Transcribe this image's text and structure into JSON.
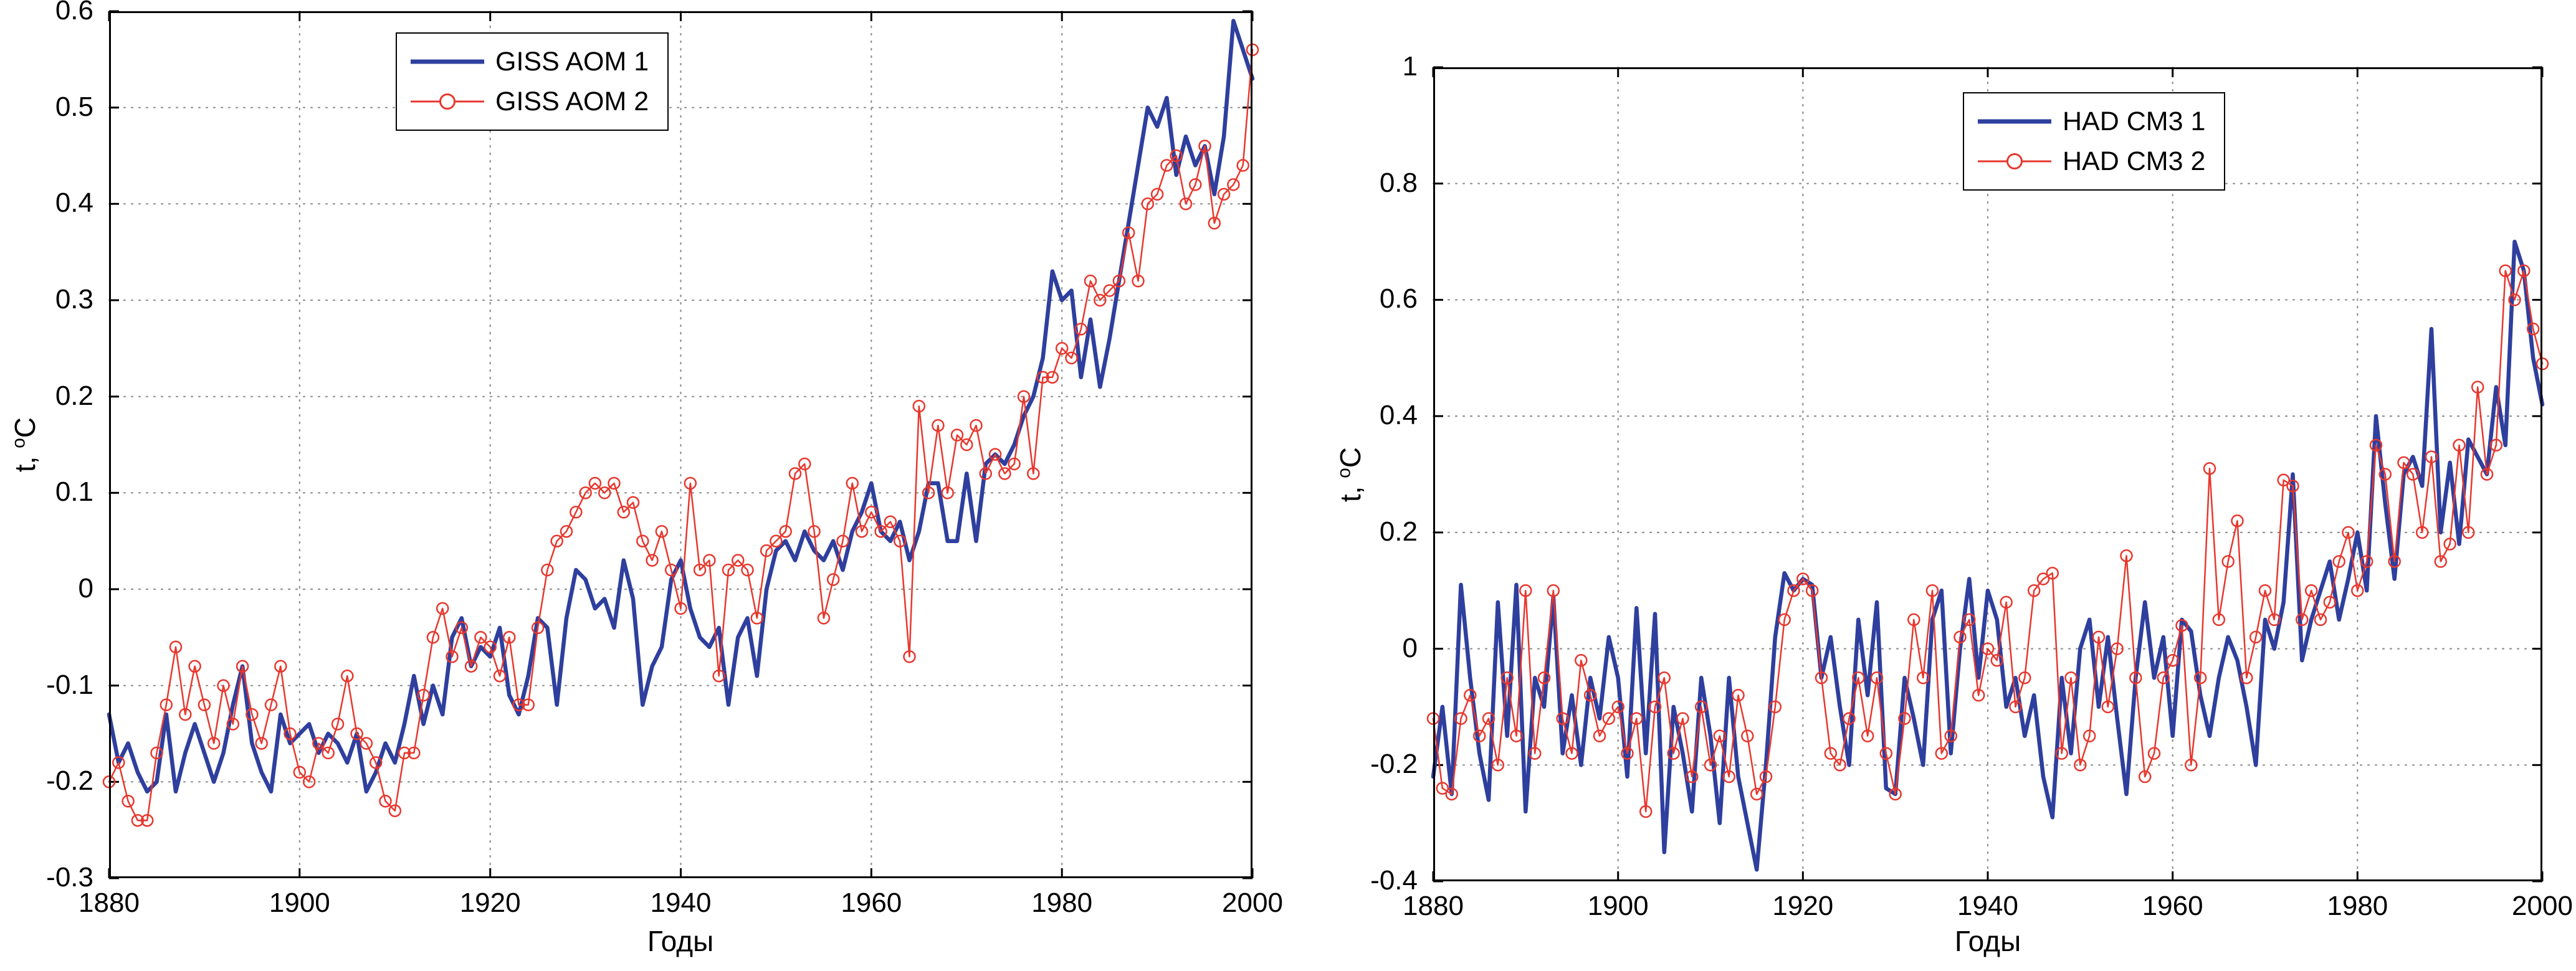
{
  "page": {
    "background": "#ffffff"
  },
  "colors": {
    "series1": "#2e3f9e",
    "series2": "#e8372d",
    "grid": "#8f8f8f",
    "axis": "#000000"
  },
  "chart_data": [
    {
      "type": "line",
      "title": "",
      "xlabel": "Годы",
      "ylabel": {
        "prefix": "t, ",
        "sup": "o",
        "base": "C"
      },
      "xlim": [
        1880,
        2000
      ],
      "ylim": [
        -0.3,
        0.6
      ],
      "xticks": [
        1880,
        1900,
        1920,
        1940,
        1960,
        1980,
        2000
      ],
      "yticks": [
        -0.3,
        -0.2,
        -0.1,
        0,
        0.1,
        0.2,
        0.3,
        0.4,
        0.5,
        0.6
      ],
      "yticklabels": [
        "-0.3",
        "-0.2",
        "-0.1",
        "0",
        "0.1",
        "0.2",
        "0.3",
        "0.4",
        "0.5",
        "0.6"
      ],
      "grid": "dotted",
      "legend": {
        "position": "upper-center-left-inside"
      },
      "x_start": 1880,
      "x_step": 1,
      "series": [
        {
          "name": "GISS AOM 1",
          "color": "#2e3f9e",
          "line_width": 6.5,
          "marker": "none",
          "values": [
            -0.13,
            -0.18,
            -0.16,
            -0.19,
            -0.21,
            -0.2,
            -0.13,
            -0.21,
            -0.17,
            -0.14,
            -0.17,
            -0.2,
            -0.17,
            -0.12,
            -0.08,
            -0.16,
            -0.19,
            -0.21,
            -0.13,
            -0.16,
            -0.15,
            -0.14,
            -0.17,
            -0.15,
            -0.16,
            -0.18,
            -0.15,
            -0.21,
            -0.19,
            -0.16,
            -0.18,
            -0.14,
            -0.09,
            -0.14,
            -0.1,
            -0.13,
            -0.05,
            -0.03,
            -0.08,
            -0.06,
            -0.07,
            -0.04,
            -0.11,
            -0.13,
            -0.09,
            -0.03,
            -0.04,
            -0.12,
            -0.03,
            0.02,
            0.01,
            -0.02,
            -0.01,
            -0.04,
            0.03,
            -0.01,
            -0.12,
            -0.08,
            -0.06,
            0.01,
            0.03,
            -0.02,
            -0.05,
            -0.06,
            -0.04,
            -0.12,
            -0.05,
            -0.03,
            -0.09,
            0.0,
            0.04,
            0.05,
            0.03,
            0.06,
            0.04,
            0.03,
            0.05,
            0.02,
            0.06,
            0.08,
            0.11,
            0.06,
            0.05,
            0.07,
            0.03,
            0.06,
            0.11,
            0.11,
            0.05,
            0.05,
            0.12,
            0.05,
            0.13,
            0.14,
            0.13,
            0.15,
            0.18,
            0.2,
            0.24,
            0.33,
            0.3,
            0.31,
            0.22,
            0.28,
            0.21,
            0.26,
            0.32,
            0.38,
            0.44,
            0.5,
            0.48,
            0.51,
            0.43,
            0.47,
            0.44,
            0.46,
            0.41,
            0.47,
            0.59,
            0.56,
            0.53
          ]
        },
        {
          "name": "GISS AOM 2",
          "color": "#e8372d",
          "line_width": 2.5,
          "marker": "circle",
          "values": [
            -0.2,
            -0.18,
            -0.22,
            -0.24,
            -0.24,
            -0.17,
            -0.12,
            -0.06,
            -0.13,
            -0.08,
            -0.12,
            -0.16,
            -0.1,
            -0.14,
            -0.08,
            -0.13,
            -0.16,
            -0.12,
            -0.08,
            -0.15,
            -0.19,
            -0.2,
            -0.16,
            -0.17,
            -0.14,
            -0.09,
            -0.15,
            -0.16,
            -0.18,
            -0.22,
            -0.23,
            -0.17,
            -0.17,
            -0.11,
            -0.05,
            -0.02,
            -0.07,
            -0.04,
            -0.08,
            -0.05,
            -0.06,
            -0.09,
            -0.05,
            -0.12,
            -0.12,
            -0.04,
            0.02,
            0.05,
            0.06,
            0.08,
            0.1,
            0.11,
            0.1,
            0.11,
            0.08,
            0.09,
            0.05,
            0.03,
            0.06,
            0.02,
            -0.02,
            0.11,
            0.02,
            0.03,
            -0.09,
            0.02,
            0.03,
            0.02,
            -0.03,
            0.04,
            0.05,
            0.06,
            0.12,
            0.13,
            0.06,
            -0.03,
            0.01,
            0.05,
            0.11,
            0.06,
            0.08,
            0.06,
            0.07,
            0.05,
            -0.07,
            0.19,
            0.1,
            0.17,
            0.1,
            0.16,
            0.15,
            0.17,
            0.12,
            0.14,
            0.12,
            0.13,
            0.2,
            0.12,
            0.22,
            0.22,
            0.25,
            0.24,
            0.27,
            0.32,
            0.3,
            0.31,
            0.32,
            0.37,
            0.32,
            0.4,
            0.41,
            0.44,
            0.45,
            0.4,
            0.42,
            0.46,
            0.38,
            0.41,
            0.42,
            0.44,
            0.56
          ]
        }
      ]
    },
    {
      "type": "line",
      "title": "",
      "xlabel": "Годы",
      "ylabel": {
        "prefix": "t, ",
        "sup": "o",
        "base": "C"
      },
      "xlim": [
        1880,
        2000
      ],
      "ylim": [
        -0.4,
        1
      ],
      "xticks": [
        1880,
        1900,
        1920,
        1940,
        1960,
        1980,
        2000
      ],
      "yticks": [
        -0.4,
        -0.2,
        0,
        0.2,
        0.4,
        0.6,
        0.8,
        1
      ],
      "yticklabels": [
        "-0.4",
        "-0.2",
        "0",
        "0.2",
        "0.4",
        "0.6",
        "0.8",
        "1"
      ],
      "grid": "dotted",
      "legend": {
        "position": "upper-center-right-inside"
      },
      "x_start": 1880,
      "x_step": 1,
      "series": [
        {
          "name": "HAD CM3 1",
          "color": "#2e3f9e",
          "line_width": 6.5,
          "marker": "none",
          "values": [
            -0.22,
            -0.1,
            -0.25,
            0.11,
            -0.05,
            -0.18,
            -0.26,
            0.08,
            -0.15,
            0.11,
            -0.28,
            -0.05,
            -0.1,
            0.09,
            -0.18,
            -0.08,
            -0.2,
            -0.05,
            -0.12,
            0.02,
            -0.05,
            -0.22,
            0.07,
            -0.18,
            0.06,
            -0.35,
            -0.1,
            -0.18,
            -0.28,
            -0.05,
            -0.15,
            -0.3,
            -0.05,
            -0.22,
            -0.3,
            -0.38,
            -0.2,
            0.02,
            0.13,
            0.1,
            0.12,
            0.11,
            -0.05,
            0.02,
            -0.1,
            -0.2,
            0.05,
            -0.08,
            0.08,
            -0.24,
            -0.25,
            -0.05,
            -0.12,
            -0.2,
            0.05,
            0.1,
            -0.18,
            0.0,
            0.12,
            -0.05,
            0.1,
            0.05,
            -0.1,
            -0.05,
            -0.15,
            -0.08,
            -0.22,
            -0.29,
            -0.05,
            -0.18,
            0.0,
            0.05,
            -0.1,
            0.02,
            -0.12,
            -0.25,
            -0.05,
            0.08,
            -0.05,
            0.02,
            -0.15,
            0.05,
            0.03,
            -0.08,
            -0.15,
            -0.05,
            0.02,
            -0.02,
            -0.1,
            -0.2,
            0.05,
            0.0,
            0.08,
            0.3,
            -0.02,
            0.05,
            0.1,
            0.15,
            0.05,
            0.12,
            0.2,
            0.1,
            0.4,
            0.25,
            0.12,
            0.3,
            0.33,
            0.28,
            0.55,
            0.2,
            0.32,
            0.18,
            0.36,
            0.33,
            0.3,
            0.45,
            0.35,
            0.7,
            0.65,
            0.5,
            0.42
          ]
        },
        {
          "name": "HAD CM3 2",
          "color": "#e8372d",
          "line_width": 2.5,
          "marker": "circle",
          "values": [
            -0.12,
            -0.24,
            -0.25,
            -0.12,
            -0.08,
            -0.15,
            -0.12,
            -0.2,
            -0.05,
            -0.15,
            0.1,
            -0.18,
            -0.05,
            0.1,
            -0.12,
            -0.18,
            -0.02,
            -0.08,
            -0.15,
            -0.12,
            -0.1,
            -0.18,
            -0.12,
            -0.28,
            -0.1,
            -0.05,
            -0.18,
            -0.12,
            -0.22,
            -0.1,
            -0.2,
            -0.15,
            -0.22,
            -0.08,
            -0.15,
            -0.25,
            -0.22,
            -0.1,
            0.05,
            0.1,
            0.12,
            0.1,
            -0.05,
            -0.18,
            -0.2,
            -0.12,
            -0.05,
            -0.15,
            -0.05,
            -0.18,
            -0.25,
            -0.12,
            0.05,
            -0.05,
            0.1,
            -0.18,
            -0.15,
            0.02,
            0.05,
            -0.08,
            0.0,
            -0.02,
            0.08,
            -0.1,
            -0.05,
            0.1,
            0.12,
            0.13,
            -0.18,
            -0.05,
            -0.2,
            -0.15,
            0.02,
            -0.1,
            0.0,
            0.16,
            -0.05,
            -0.22,
            -0.18,
            -0.05,
            -0.02,
            0.04,
            -0.2,
            -0.05,
            0.31,
            0.05,
            0.15,
            0.22,
            -0.05,
            0.02,
            0.1,
            0.05,
            0.29,
            0.28,
            0.05,
            0.1,
            0.05,
            0.08,
            0.15,
            0.2,
            0.1,
            0.15,
            0.35,
            0.3,
            0.15,
            0.32,
            0.3,
            0.2,
            0.33,
            0.15,
            0.18,
            0.35,
            0.2,
            0.45,
            0.3,
            0.35,
            0.65,
            0.6,
            0.65,
            0.55,
            0.49
          ]
        }
      ]
    }
  ]
}
